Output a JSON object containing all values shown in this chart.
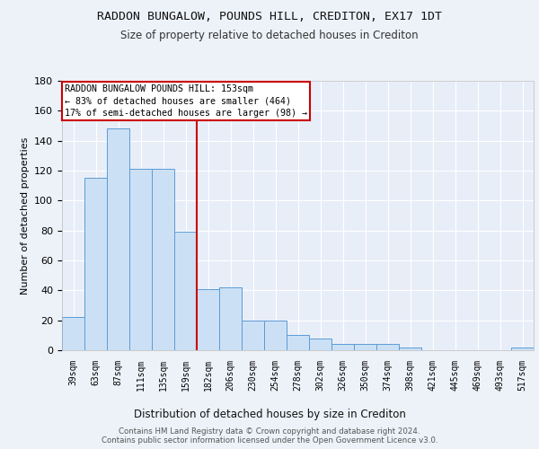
{
  "title1": "RADDON BUNGALOW, POUNDS HILL, CREDITON, EX17 1DT",
  "title2": "Size of property relative to detached houses in Crediton",
  "xlabel": "Distribution of detached houses by size in Crediton",
  "ylabel": "Number of detached properties",
  "bar_labels": [
    "39sqm",
    "63sqm",
    "87sqm",
    "111sqm",
    "135sqm",
    "159sqm",
    "182sqm",
    "206sqm",
    "230sqm",
    "254sqm",
    "278sqm",
    "302sqm",
    "326sqm",
    "350sqm",
    "374sqm",
    "398sqm",
    "421sqm",
    "445sqm",
    "469sqm",
    "493sqm",
    "517sqm"
  ],
  "bar_values": [
    22,
    115,
    148,
    121,
    121,
    79,
    41,
    42,
    20,
    20,
    10,
    8,
    4,
    4,
    4,
    2,
    0,
    0,
    0,
    0,
    2
  ],
  "bar_color": "#cce0f5",
  "bar_edge_color": "#5b9bd5",
  "vline_x_pos": 5.5,
  "vline_color": "#cc0000",
  "ylim": [
    0,
    180
  ],
  "yticks": [
    0,
    20,
    40,
    60,
    80,
    100,
    120,
    140,
    160,
    180
  ],
  "annotation_text": "RADDON BUNGALOW POUNDS HILL: 153sqm\n← 83% of detached houses are smaller (464)\n17% of semi-detached houses are larger (98) →",
  "footer_text": "Contains HM Land Registry data © Crown copyright and database right 2024.\nContains public sector information licensed under the Open Government Licence v3.0.",
  "bg_color": "#edf2f9",
  "plot_bg_color": "#e8eef8",
  "grid_color": "#ffffff",
  "annotation_box_color": "#ffffff",
  "annotation_border_color": "#cc0000"
}
